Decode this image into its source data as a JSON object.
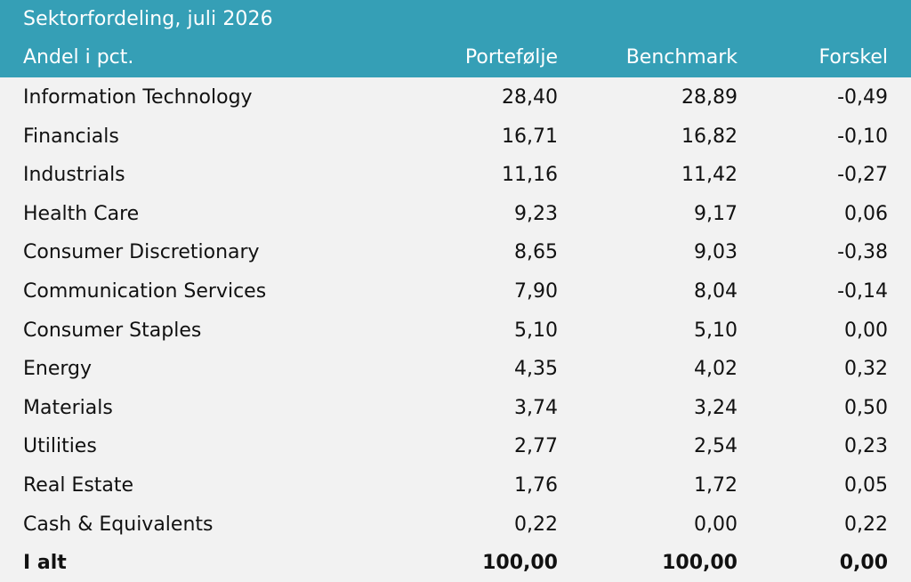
{
  "table": {
    "title": "Sektorfordeling, juli 2026",
    "columns": {
      "label": "Andel i pct.",
      "portfolio": "Portefølje",
      "benchmark": "Benchmark",
      "difference": "Forskel"
    },
    "rows": [
      {
        "sector": "Information Technology",
        "portfolio": "28,40",
        "benchmark": "28,89",
        "difference": "-0,49"
      },
      {
        "sector": "Financials",
        "portfolio": "16,71",
        "benchmark": "16,82",
        "difference": "-0,10"
      },
      {
        "sector": "Industrials",
        "portfolio": "11,16",
        "benchmark": "11,42",
        "difference": "-0,27"
      },
      {
        "sector": "Health Care",
        "portfolio": "9,23",
        "benchmark": "9,17",
        "difference": "0,06"
      },
      {
        "sector": "Consumer Discretionary",
        "portfolio": "8,65",
        "benchmark": "9,03",
        "difference": "-0,38"
      },
      {
        "sector": "Communication Services",
        "portfolio": "7,90",
        "benchmark": "8,04",
        "difference": "-0,14"
      },
      {
        "sector": "Consumer Staples",
        "portfolio": "5,10",
        "benchmark": "5,10",
        "difference": "0,00"
      },
      {
        "sector": "Energy",
        "portfolio": "4,35",
        "benchmark": "4,02",
        "difference": "0,32"
      },
      {
        "sector": "Materials",
        "portfolio": "3,74",
        "benchmark": "3,24",
        "difference": "0,50"
      },
      {
        "sector": "Utilities",
        "portfolio": "2,77",
        "benchmark": "2,54",
        "difference": "0,23"
      },
      {
        "sector": "Real Estate",
        "portfolio": "1,76",
        "benchmark": "1,72",
        "difference": "0,05"
      },
      {
        "sector": "Cash & Equivalents",
        "portfolio": "0,22",
        "benchmark": "0,00",
        "difference": "0,22"
      }
    ],
    "total": {
      "label": "I alt",
      "portfolio": "100,00",
      "benchmark": "100,00",
      "difference": "0,00"
    }
  },
  "colors": {
    "header_background": "#359fb6",
    "header_text": "#ffffff",
    "body_background": "#f2f2f2",
    "body_text": "#111111"
  }
}
